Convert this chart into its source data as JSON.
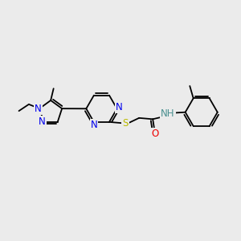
{
  "background_color": "#ebebeb",
  "atom_colors": {
    "N": "#0000ee",
    "S": "#bbbb00",
    "O": "#ee0000",
    "H": "#4a9090",
    "C": "#000000"
  },
  "bond_lw": 1.3,
  "font_size": 8.5,
  "figsize": [
    3.0,
    3.0
  ],
  "dpi": 100
}
